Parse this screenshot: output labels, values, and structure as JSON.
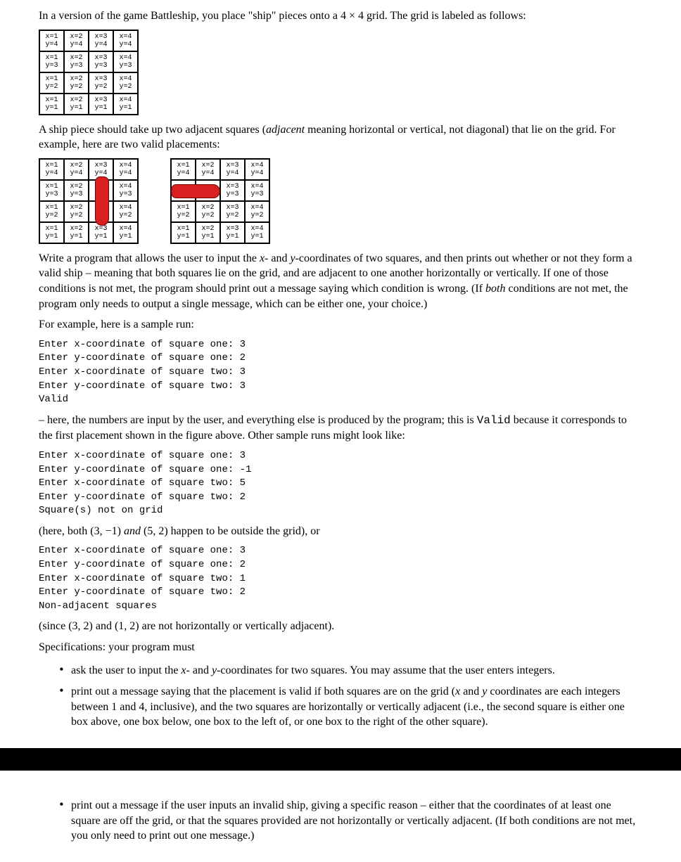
{
  "intro": "In a version of the game Battleship, you place \"ship\" pieces onto a 4 × 4 grid. The grid is labeled as follows:",
  "grid_labels": {
    "rows": [
      [
        {
          "x": 1,
          "y": 4
        },
        {
          "x": 2,
          "y": 4
        },
        {
          "x": 3,
          "y": 4
        },
        {
          "x": 4,
          "y": 4
        }
      ],
      [
        {
          "x": 1,
          "y": 3
        },
        {
          "x": 2,
          "y": 3
        },
        {
          "x": 3,
          "y": 3
        },
        {
          "x": 4,
          "y": 3
        }
      ],
      [
        {
          "x": 1,
          "y": 2
        },
        {
          "x": 2,
          "y": 2
        },
        {
          "x": 3,
          "y": 2
        },
        {
          "x": 4,
          "y": 2
        }
      ],
      [
        {
          "x": 1,
          "y": 1
        },
        {
          "x": 2,
          "y": 1
        },
        {
          "x": 3,
          "y": 1
        },
        {
          "x": 4,
          "y": 1
        }
      ]
    ]
  },
  "adjacent_text_a": "A ship piece should take up two adjacent squares (",
  "adjacent_text_b": "adjacent",
  "adjacent_text_c": " meaning horizontal or vertical, not diagonal) that lie on the grid. For example, here are two valid placements:",
  "ship_examples": {
    "grid1": {
      "ship_cells": [
        [
          1,
          2
        ],
        [
          2,
          2
        ]
      ],
      "orientation": "vertical"
    },
    "grid2": {
      "ship_cells": [
        [
          1,
          0
        ],
        [
          1,
          1
        ]
      ],
      "orientation": "horizontal"
    },
    "ship_color": "#d92020"
  },
  "write_program_a": "Write a program that allows the user to input the ",
  "write_program_b": "- and ",
  "write_program_c": "-coordinates of two squares, and then prints out whether or not they form a valid ship – meaning that both squares lie on the grid, and are adjacent to one another horizontally or vertically. If one of those conditions is not met, the program should print out a message saying which condition is wrong. (If ",
  "write_program_d": "both",
  "write_program_e": " conditions are not met, the program only needs to output a single message, which can be either one, your choice.)",
  "sample_run_intro": "For example, here is a sample run:",
  "sample1": "Enter x-coordinate of square one: 3\nEnter y-coordinate of square one: 2\nEnter x-coordinate of square two: 3\nEnter y-coordinate of square two: 3\nValid",
  "after_sample1_a": "– here, the numbers are input by the user, and everything else is produced by the program; this is ",
  "after_sample1_b": "Valid",
  "after_sample1_c": " because it corresponds to the first placement shown in the figure above. Other sample runs might look like:",
  "sample2": "Enter x-coordinate of square one: 3\nEnter y-coordinate of square one: -1\nEnter x-coordinate of square two: 5\nEnter y-coordinate of square two: 2\nSquare(s) not on grid",
  "after_sample2_a": "(here, both (3, −1) ",
  "after_sample2_b": "and",
  "after_sample2_c": " (5, 2) happen to be outside the grid), or",
  "sample3": "Enter x-coordinate of square one: 3\nEnter y-coordinate of square one: 2\nEnter x-coordinate of square two: 1\nEnter y-coordinate of square two: 2\nNon-adjacent squares",
  "after_sample3": "(since (3, 2) and (1, 2) are not horizontally or vertically adjacent).",
  "specs_intro": "Specifications: your program must",
  "spec1_a": "ask the user to input the ",
  "spec1_b": "- and ",
  "spec1_c": "-coordinates for two squares. You may assume that the user enters integers.",
  "spec2_a": "print out a message saying that the placement is valid if both squares are on the grid (",
  "spec2_b": " and ",
  "spec2_c": " coordinates are each integers between 1 and 4, inclusive), and the two squares are horizontally or vertically adjacent (i.e., the second square is either one box above, one box below, one box to the left of, or one box to the right of the other square).",
  "spec3": "print out a message if the user inputs an invalid ship, giving a specific reason – either that the coordinates of at least one square are off the grid, or that the squares provided are not horizontally or vertically adjacent. (If both conditions are not met, you only need to print out one message.)",
  "x_var": "x",
  "y_var": "y"
}
